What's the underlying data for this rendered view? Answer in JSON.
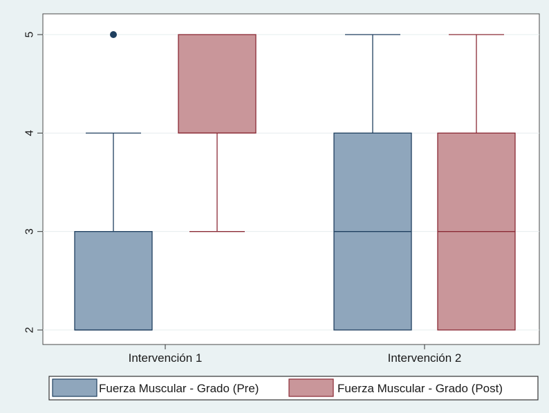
{
  "chart_data": {
    "type": "box",
    "categories": [
      "Intervención 1",
      "Intervención 2"
    ],
    "ylim": [
      2,
      5
    ],
    "yticks": [
      "2",
      "3",
      "4",
      "5"
    ],
    "grid": true,
    "legend_position": "bottom",
    "series": [
      {
        "name": "Fuerza Muscular - Grado (Pre)",
        "color": "#8fa6bc",
        "line_color": "#1f3f5f",
        "boxes": [
          {
            "min": 2,
            "q1": 2,
            "median": 2,
            "q3": 3,
            "max": 4,
            "outliers": [
              5
            ]
          },
          {
            "min": 2,
            "q1": 2,
            "median": 3,
            "q3": 4,
            "max": 5,
            "outliers": []
          }
        ]
      },
      {
        "name": "Fuerza Muscular - Grado (Post)",
        "color": "#c9969a",
        "line_color": "#8a2a35",
        "boxes": [
          {
            "min": 3,
            "q1": 4,
            "median": 4,
            "q3": 5,
            "max": 5,
            "outliers": []
          },
          {
            "min": 2,
            "q1": 2,
            "median": 3,
            "q3": 4,
            "max": 5,
            "outliers": []
          }
        ]
      }
    ]
  }
}
